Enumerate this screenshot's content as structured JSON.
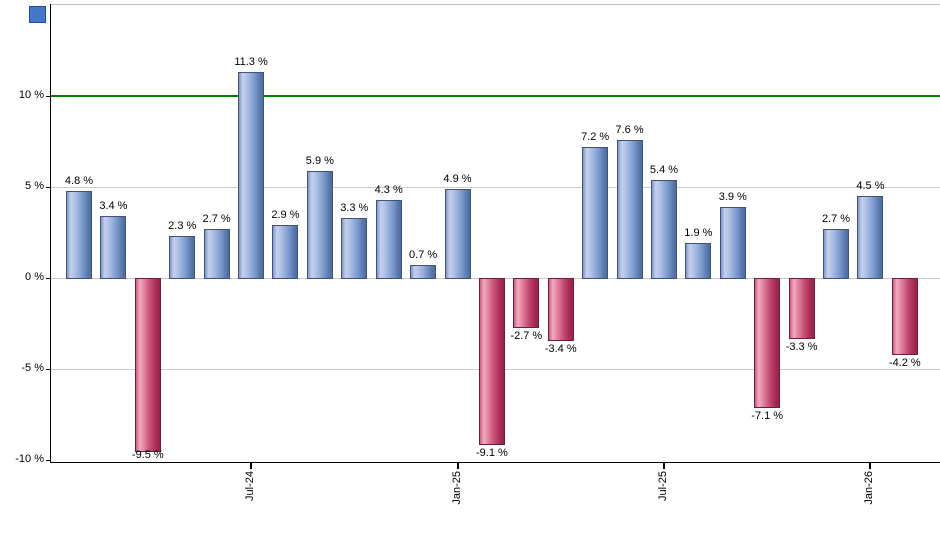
{
  "chart_data": {
    "type": "bar",
    "title": "",
    "xlabel": "",
    "ylabel": "",
    "values": [
      4.8,
      3.4,
      -9.5,
      2.3,
      2.7,
      11.3,
      2.9,
      5.9,
      3.3,
      4.3,
      0.7,
      4.9,
      -9.1,
      -2.7,
      -3.4,
      7.2,
      7.6,
      5.4,
      1.9,
      3.9,
      -7.1,
      -3.3,
      2.7,
      4.5,
      -4.2
    ],
    "bar_labels": [
      "4.8 %",
      "3.4 %",
      "-9.5 %",
      "2.3 %",
      "2.7 %",
      "11.3 %",
      "2.9 %",
      "5.9 %",
      "3.3 %",
      "4.3 %",
      "0.7 %",
      "4.9 %",
      "-9.1 %",
      "-2.7 %",
      "-3.4 %",
      "7.2 %",
      "7.6 %",
      "5.4 %",
      "1.9 %",
      "3.9 %",
      "-7.1 %",
      "-3.3 %",
      "2.7 %",
      "4.5 %",
      "-4.2 %"
    ],
    "x_ticks": [
      {
        "bar_index": 5,
        "label": "Jul-24"
      },
      {
        "bar_index": 11,
        "label": "Jan-25"
      },
      {
        "bar_index": 17,
        "label": "Jul-25"
      },
      {
        "bar_index": 23,
        "label": "Jan-26"
      }
    ],
    "y_ticks": [
      {
        "value": 10,
        "label": "10 %"
      },
      {
        "value": 5,
        "label": "5 %"
      },
      {
        "value": 0,
        "label": "0 %"
      },
      {
        "value": -5,
        "label": "-5 %"
      },
      {
        "value": -10,
        "label": "-10 %"
      }
    ],
    "ylim": [
      -10.1,
      15.1
    ],
    "grid": true,
    "legend_position": "none",
    "reference_line": {
      "value": 10,
      "color": "#008000"
    },
    "colors": {
      "positive_bar_mid": "#90aad8",
      "negative_bar_mid": "#c04a70",
      "gridline": "#cccccc",
      "axis": "#000000",
      "top_border": "#c0c0c0",
      "label_text": "#000000",
      "corner_chip": "#4677c8"
    }
  }
}
